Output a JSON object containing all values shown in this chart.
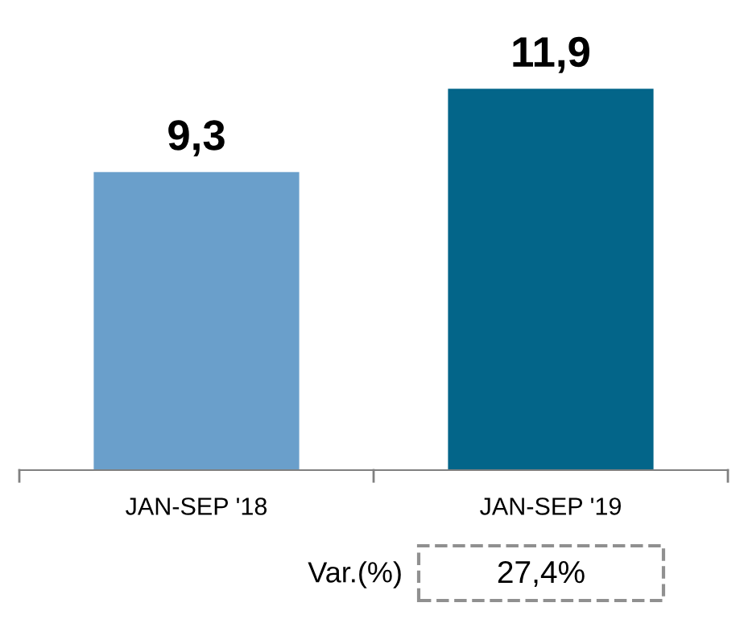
{
  "chart_data": {
    "type": "bar",
    "categories": [
      "JAN-SEP '18",
      "JAN-SEP '19"
    ],
    "values": [
      9.3,
      11.9
    ],
    "colors": [
      "#6a9fcb",
      "#036589"
    ],
    "value_labels": [
      "9,3",
      "11,9"
    ],
    "annotations": [
      "Var.(%)",
      "27,4%"
    ],
    "grid": false,
    "legend": false
  }
}
